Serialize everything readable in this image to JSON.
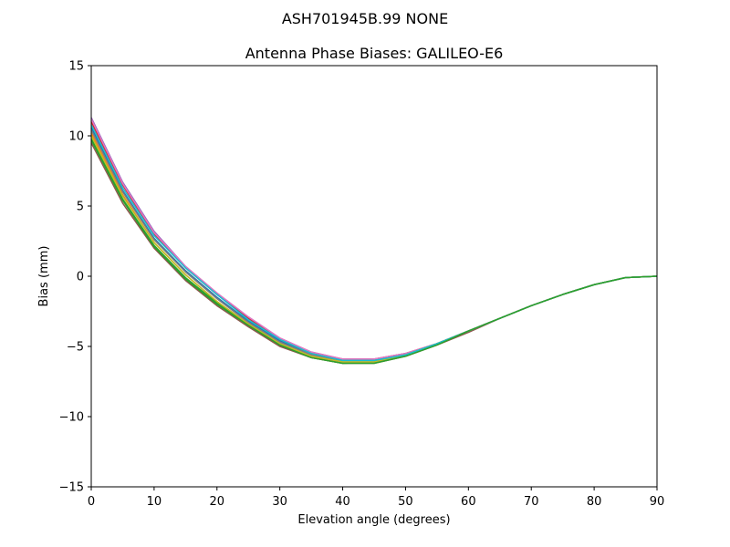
{
  "chart_data": {
    "type": "line",
    "suptitle": "ASH701945B.99   NONE",
    "title": "Antenna Phase Biases: GALILEO-E6",
    "xlabel": "Elevation angle (degrees)",
    "ylabel": "Bias (mm)",
    "xlim": [
      0,
      90
    ],
    "ylim": [
      -15,
      15
    ],
    "xticks": [
      "0",
      "10",
      "20",
      "30",
      "40",
      "50",
      "60",
      "70",
      "80",
      "90"
    ],
    "yticks": [
      "15",
      "10",
      "5",
      "0",
      "−5",
      "−10",
      "−15"
    ],
    "grid": false,
    "x": [
      0,
      5,
      10,
      15,
      20,
      25,
      30,
      35,
      40,
      45,
      50,
      55,
      60,
      65,
      70,
      75,
      80,
      85,
      90
    ],
    "series": [
      {
        "color": "#1f77b4",
        "values": [
          10.6,
          6.1,
          2.7,
          0.4,
          -1.5,
          -3.2,
          -4.6,
          -5.6,
          -6.0,
          -6.0,
          -5.6,
          -4.8,
          -3.9,
          -3.0,
          -2.1,
          -1.3,
          -0.6,
          -0.1,
          0.0
        ]
      },
      {
        "color": "#ff7f0e",
        "values": [
          10.2,
          5.8,
          2.4,
          0.1,
          -1.8,
          -3.4,
          -4.8,
          -5.7,
          -6.1,
          -6.1,
          -5.6,
          -4.8,
          -3.9,
          -3.0,
          -2.1,
          -1.3,
          -0.6,
          -0.1,
          0.0
        ]
      },
      {
        "color": "#2ca02c",
        "values": [
          9.8,
          5.5,
          2.2,
          -0.1,
          -1.9,
          -3.5,
          -4.9,
          -5.8,
          -6.2,
          -6.1,
          -5.6,
          -4.8,
          -3.9,
          -3.0,
          -2.1,
          -1.3,
          -0.6,
          -0.1,
          0.0
        ]
      },
      {
        "color": "#d62728",
        "values": [
          11.0,
          6.5,
          3.0,
          0.6,
          -1.3,
          -3.0,
          -4.5,
          -5.5,
          -5.9,
          -5.9,
          -5.5,
          -4.8,
          -3.9,
          -3.0,
          -2.1,
          -1.3,
          -0.6,
          -0.1,
          0.0
        ]
      },
      {
        "color": "#9467bd",
        "values": [
          11.3,
          6.7,
          3.2,
          0.7,
          -1.2,
          -2.9,
          -4.4,
          -5.4,
          -5.9,
          -5.9,
          -5.5,
          -4.8,
          -3.9,
          -3.0,
          -2.1,
          -1.3,
          -0.6,
          -0.1,
          0.0
        ]
      },
      {
        "color": "#8c564b",
        "values": [
          9.5,
          5.2,
          2.0,
          -0.3,
          -2.1,
          -3.6,
          -5.0,
          -5.8,
          -6.2,
          -6.2,
          -5.7,
          -4.9,
          -4.0,
          -3.0,
          -2.1,
          -1.3,
          -0.6,
          -0.1,
          0.0
        ]
      },
      {
        "color": "#e377c2",
        "values": [
          11.2,
          6.6,
          3.1,
          0.7,
          -1.2,
          -2.9,
          -4.4,
          -5.4,
          -5.9,
          -5.9,
          -5.5,
          -4.8,
          -3.9,
          -3.0,
          -2.1,
          -1.3,
          -0.6,
          -0.1,
          0.0
        ]
      },
      {
        "color": "#7f7f7f",
        "values": [
          10.4,
          6.0,
          2.6,
          0.3,
          -1.6,
          -3.3,
          -4.7,
          -5.6,
          -6.0,
          -6.0,
          -5.6,
          -4.8,
          -3.9,
          -3.0,
          -2.1,
          -1.3,
          -0.6,
          -0.1,
          0.0
        ]
      },
      {
        "color": "#bcbd22",
        "values": [
          10.0,
          5.7,
          2.4,
          0.1,
          -1.8,
          -3.4,
          -4.8,
          -5.7,
          -6.1,
          -6.1,
          -5.6,
          -4.8,
          -3.9,
          -3.0,
          -2.1,
          -1.3,
          -0.6,
          -0.1,
          0.0
        ]
      },
      {
        "color": "#17becf",
        "values": [
          10.8,
          6.3,
          2.9,
          0.6,
          -1.3,
          -3.1,
          -4.5,
          -5.5,
          -6.0,
          -6.0,
          -5.6,
          -4.8,
          -3.9,
          -3.0,
          -2.1,
          -1.3,
          -0.6,
          -0.1,
          0.0
        ]
      },
      {
        "color": "#2ca02c",
        "values": [
          9.7,
          5.4,
          2.1,
          -0.2,
          -2.0,
          -3.5,
          -4.9,
          -5.8,
          -6.2,
          -6.2,
          -5.7,
          -4.9,
          -3.9,
          -3.0,
          -2.1,
          -1.3,
          -0.6,
          -0.1,
          0.0
        ]
      }
    ]
  }
}
